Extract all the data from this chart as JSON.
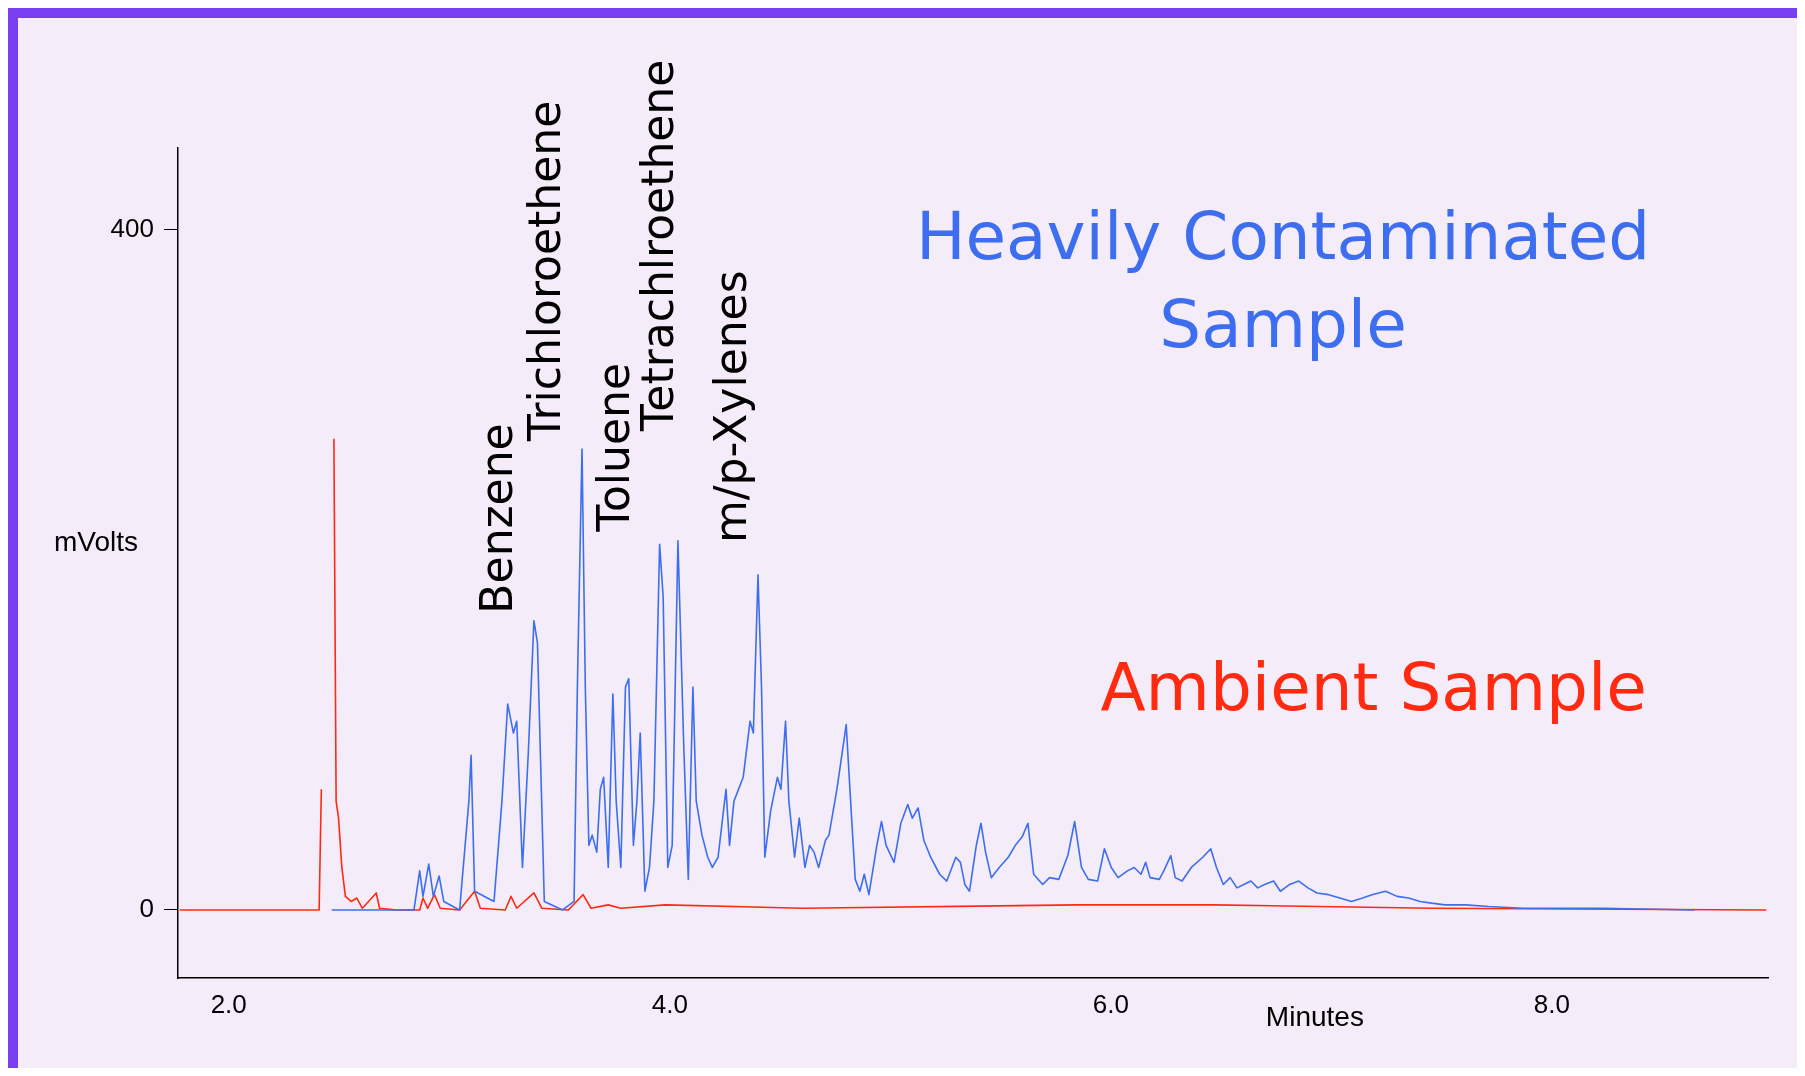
{
  "chart_data": {
    "type": "line",
    "xlabel": "Minutes",
    "ylabel": "mVolts",
    "xlim": [
      1.77,
      8.98
    ],
    "ylim": [
      -40,
      448
    ],
    "xticks": [
      {
        "value": 2,
        "label": "2.0"
      },
      {
        "value": 4,
        "label": "4.0"
      },
      {
        "value": 6,
        "label": "6.0"
      },
      {
        "value": 8,
        "label": "8.0"
      }
    ],
    "yticks": [
      0,
      400
    ],
    "grid": false,
    "legend": false,
    "marker": "none",
    "line_style": "solid",
    "annotations": [
      "Benzene",
      "Trichloroethene",
      "Toluene",
      "Tetrachlroethene",
      "m/p-Xylenes"
    ],
    "series": [
      {
        "name": "Heavily Contaminated Sample",
        "color": "#3d6ef0",
        "x": [
          2.467,
          2.84,
          2.866,
          2.881,
          2.907,
          2.928,
          2.954,
          2.975,
          3.047,
          3.089,
          3.099,
          3.115,
          3.203,
          3.239,
          3.265,
          3.291,
          3.306,
          3.332,
          3.358,
          3.384,
          3.4,
          3.431,
          3.514,
          3.566,
          3.581,
          3.602,
          3.617,
          3.633,
          3.648,
          3.669,
          3.685,
          3.7,
          3.721,
          3.742,
          3.757,
          3.778,
          3.799,
          3.814,
          3.835,
          3.851,
          3.866,
          3.887,
          3.908,
          3.928,
          3.954,
          3.97,
          3.991,
          4.011,
          4.037,
          4.063,
          4.084,
          4.105,
          4.12,
          4.146,
          4.172,
          4.193,
          4.219,
          4.255,
          4.271,
          4.291,
          4.333,
          4.364,
          4.379,
          4.4,
          4.416,
          4.431,
          4.457,
          4.488,
          4.504,
          4.525,
          4.54,
          4.566,
          4.587,
          4.613,
          4.634,
          4.654,
          4.675,
          4.706,
          4.722,
          4.758,
          4.8,
          4.82,
          4.841,
          4.862,
          4.882,
          4.903,
          4.939,
          4.96,
          4.981,
          5.017,
          5.048,
          5.079,
          5.1,
          5.126,
          5.152,
          5.183,
          5.224,
          5.256,
          5.297,
          5.318,
          5.338,
          5.359,
          5.39,
          5.411,
          5.432,
          5.458,
          5.494,
          5.535,
          5.567,
          5.598,
          5.624,
          5.65,
          5.691,
          5.722,
          5.764,
          5.805,
          5.836,
          5.867,
          5.898,
          5.94,
          5.971,
          6.002,
          6.033,
          6.075,
          6.106,
          6.137,
          6.158,
          6.178,
          6.22,
          6.24,
          6.272,
          6.292,
          6.323,
          6.365,
          6.417,
          6.453,
          6.479,
          6.51,
          6.541,
          6.572,
          6.603,
          6.635,
          6.666,
          6.697,
          6.738,
          6.769,
          6.811,
          6.852,
          6.894,
          6.935,
          6.987,
          7.039,
          7.091,
          7.142,
          7.184,
          7.246,
          7.298,
          7.35,
          7.402,
          7.454,
          7.516,
          7.609,
          7.713,
          7.868,
          8.231,
          8.646
        ],
        "values": [
          0,
          0,
          23,
          8,
          27,
          8,
          20,
          5,
          0,
          64,
          91,
          11,
          5,
          64,
          121,
          104,
          111,
          25,
          91,
          170,
          157,
          5,
          0,
          5,
          131,
          271,
          131,
          38,
          44,
          34,
          71,
          78,
          25,
          127,
          64,
          25,
          131,
          136,
          38,
          64,
          104,
          11,
          25,
          64,
          215,
          184,
          25,
          38,
          217,
          98,
          18,
          131,
          64,
          44,
          31,
          25,
          31,
          71,
          38,
          64,
          78,
          111,
          104,
          197,
          131,
          31,
          58,
          78,
          71,
          111,
          64,
          31,
          54,
          25,
          38,
          34,
          25,
          41,
          44,
          71,
          109,
          64,
          18,
          11,
          21,
          9,
          38,
          52,
          38,
          28,
          51,
          62,
          54,
          60,
          41,
          31,
          21,
          17,
          31,
          28,
          15,
          11,
          38,
          51,
          34,
          19,
          25,
          31,
          38,
          43,
          51,
          21,
          15,
          19,
          18,
          32,
          52,
          25,
          18,
          17,
          36,
          25,
          19,
          23,
          25,
          21,
          28,
          19,
          18,
          23,
          32,
          19,
          17,
          25,
          31,
          36,
          25,
          15,
          19,
          13,
          15,
          17,
          13,
          15,
          17,
          11,
          15,
          17,
          13,
          10,
          9,
          7,
          5,
          7,
          9,
          11,
          8,
          7,
          5,
          4,
          3,
          3,
          2,
          1,
          1,
          0
        ]
      },
      {
        "name": "Ambient Sample",
        "color": "#ff2a10",
        "x": [
          1.777,
          2.41,
          2.42,
          2.43,
          2.472,
          2.477,
          2.487,
          2.498,
          2.513,
          2.529,
          2.555,
          2.581,
          2.606,
          2.669,
          2.684,
          2.762,
          2.866,
          2.881,
          2.902,
          2.933,
          2.959,
          3.047,
          3.115,
          3.141,
          3.254,
          3.28,
          3.306,
          3.384,
          3.42,
          3.54,
          3.607,
          3.643,
          3.721,
          3.778,
          3.98,
          4.602,
          5.847,
          6.469,
          7.454,
          8.972
        ],
        "values": [
          0,
          0,
          71,
          null,
          null,
          277,
          64,
          54,
          25,
          8,
          5,
          7,
          1,
          10,
          1,
          0,
          0,
          7,
          1,
          9,
          1,
          0,
          11,
          1,
          0,
          8,
          1,
          10,
          1,
          0,
          9,
          1,
          3,
          1,
          3,
          1,
          3,
          3,
          1,
          0
        ]
      }
    ]
  }
}
